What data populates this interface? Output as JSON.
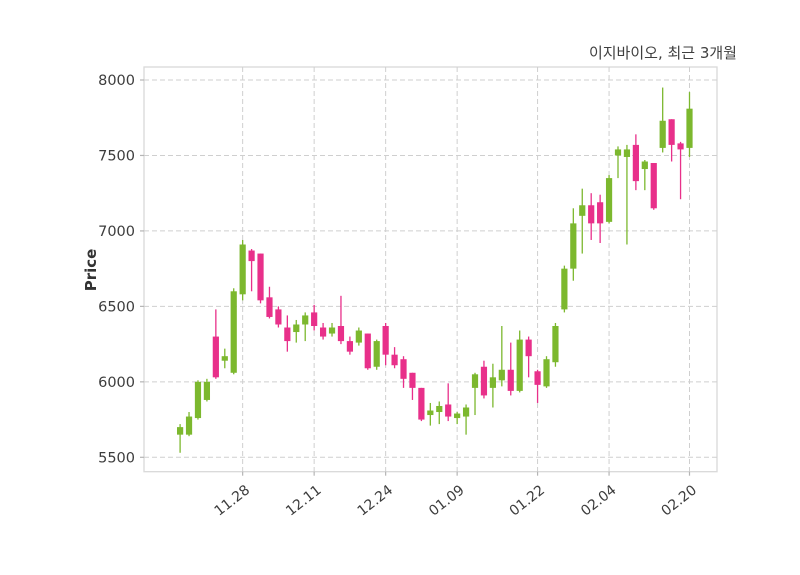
{
  "title": "이지바이오, 최근 3개월",
  "chart_data": {
    "type": "candlestick",
    "title": "이지바이오, 최근 3개월",
    "ylabel": "Price",
    "ylim": [
      5400,
      8090
    ],
    "yticks": [
      5500,
      6000,
      6500,
      7000,
      7500,
      8000
    ],
    "xticklabels": [
      "11.28",
      "12.11",
      "12.24",
      "01.09",
      "01.22",
      "02.04",
      "02.20"
    ],
    "xtick_indices": [
      7,
      15,
      23,
      31,
      40,
      48,
      57
    ],
    "grid": true,
    "colors": {
      "up": "#7cb82e",
      "down": "#e8308a",
      "grid": "#cfcfcf",
      "spine": "#d9d9d9",
      "tick_text": "#3d3d3d"
    },
    "candles_format": [
      "open",
      "high",
      "low",
      "close"
    ],
    "candles": [
      [
        5650,
        5720,
        5530,
        5700
      ],
      [
        5650,
        5800,
        5640,
        5770
      ],
      [
        5760,
        6010,
        5750,
        6000
      ],
      [
        5880,
        6020,
        5870,
        6000
      ],
      [
        6300,
        6480,
        6020,
        6030
      ],
      [
        6140,
        6220,
        6090,
        6170
      ],
      [
        6060,
        6620,
        6050,
        6600
      ],
      [
        6580,
        6940,
        6540,
        6910
      ],
      [
        6870,
        6880,
        6600,
        6800
      ],
      [
        6850,
        6850,
        6520,
        6540
      ],
      [
        6560,
        6630,
        6420,
        6430
      ],
      [
        6480,
        6500,
        6360,
        6380
      ],
      [
        6360,
        6440,
        6200,
        6270
      ],
      [
        6330,
        6410,
        6260,
        6380
      ],
      [
        6380,
        6460,
        6270,
        6440
      ],
      [
        6460,
        6510,
        6340,
        6370
      ],
      [
        6360,
        6390,
        6280,
        6300
      ],
      [
        6320,
        6390,
        6300,
        6360
      ],
      [
        6370,
        6570,
        6250,
        6270
      ],
      [
        6270,
        6300,
        6180,
        6200
      ],
      [
        6260,
        6360,
        6240,
        6340
      ],
      [
        6320,
        6320,
        6080,
        6090
      ],
      [
        6100,
        6280,
        6080,
        6270
      ],
      [
        6370,
        6390,
        6110,
        6180
      ],
      [
        6180,
        6230,
        6090,
        6110
      ],
      [
        6150,
        6170,
        5960,
        6020
      ],
      [
        6060,
        6060,
        5880,
        5960
      ],
      [
        5960,
        5960,
        5740,
        5750
      ],
      [
        5780,
        5860,
        5710,
        5810
      ],
      [
        5800,
        5870,
        5720,
        5840
      ],
      [
        5850,
        5990,
        5740,
        5770
      ],
      [
        5760,
        5800,
        5720,
        5790
      ],
      [
        5770,
        5850,
        5650,
        5830
      ],
      [
        5960,
        6060,
        5780,
        6050
      ],
      [
        6100,
        6140,
        5890,
        5910
      ],
      [
        5960,
        6120,
        5830,
        6030
      ],
      [
        6010,
        6370,
        5970,
        6080
      ],
      [
        6080,
        6260,
        5910,
        5940
      ],
      [
        5940,
        6340,
        5930,
        6280
      ],
      [
        6280,
        6300,
        6030,
        6170
      ],
      [
        6070,
        6080,
        5860,
        5980
      ],
      [
        5970,
        6170,
        5960,
        6150
      ],
      [
        6130,
        6390,
        6100,
        6370
      ],
      [
        6480,
        6770,
        6460,
        6750
      ],
      [
        6750,
        7150,
        6670,
        7050
      ],
      [
        7100,
        7280,
        6850,
        7170
      ],
      [
        7170,
        7250,
        6940,
        7050
      ],
      [
        7190,
        7240,
        6920,
        7050
      ],
      [
        7060,
        7370,
        7050,
        7350
      ],
      [
        7500,
        7560,
        7350,
        7540
      ],
      [
        7490,
        7570,
        6910,
        7540
      ],
      [
        7570,
        7640,
        7270,
        7330
      ],
      [
        7410,
        7470,
        7270,
        7460
      ],
      [
        7450,
        7450,
        7140,
        7150
      ],
      [
        7550,
        7950,
        7520,
        7730
      ],
      [
        7740,
        7740,
        7460,
        7570
      ],
      [
        7580,
        7590,
        7210,
        7540
      ],
      [
        7550,
        7920,
        7490,
        7810
      ]
    ]
  }
}
